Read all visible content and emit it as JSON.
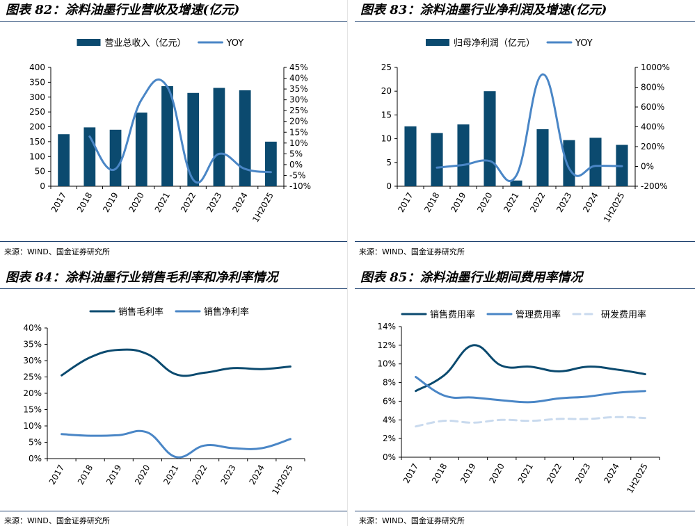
{
  "colors": {
    "bar": "#0b4a6f",
    "line_dark": "#0b4a6f",
    "line_mid": "#4a86c6",
    "line_light": "#c9daee",
    "rule": "#1c3f6e"
  },
  "charts": [
    {
      "title": "图表 82：涂料油墨行业营收及增速(亿元)",
      "source": "来源：WIND、国金证券研究所",
      "chart_data": {
        "type": "bar",
        "categories": [
          "2017",
          "2018",
          "2019",
          "2020",
          "2021",
          "2022",
          "2023",
          "2024",
          "1H2025"
        ],
        "series": [
          {
            "name": "营业总收入（亿元）",
            "kind": "bar",
            "axis": "left",
            "values": [
              175,
              198,
              190,
              248,
              337,
              314,
              331,
              323,
              150
            ]
          },
          {
            "name": "YOY",
            "kind": "line",
            "axis": "right",
            "values": [
              null,
              13,
              -2,
              30,
              36,
              -7,
              5,
              -2,
              -3.5
            ]
          }
        ],
        "ylim": [
          0,
          400
        ],
        "yticks": [
          0,
          50,
          100,
          150,
          200,
          250,
          300,
          350,
          400
        ],
        "ylim_right": [
          -10,
          45
        ],
        "yticks_right": [
          -10,
          -5,
          0,
          5,
          10,
          15,
          20,
          25,
          30,
          35,
          40,
          45
        ],
        "yticklabels_right": [
          "-10%",
          "-5%",
          "0%",
          "5%",
          "10%",
          "15%",
          "20%",
          "25%",
          "30%",
          "35%",
          "40%",
          "45%"
        ],
        "legend": "top-center"
      }
    },
    {
      "title": "图表 83：涂料油墨行业净利润及增速(亿元)",
      "source": "来源：WIND、国金证券研究所",
      "chart_data": {
        "type": "bar",
        "categories": [
          "2017",
          "2018",
          "2019",
          "2020",
          "2021",
          "2022",
          "2023",
          "2024",
          "1H2025"
        ],
        "series": [
          {
            "name": "归母净利润（亿元）",
            "kind": "bar",
            "axis": "left",
            "values": [
              12.6,
              11.2,
              13,
              20,
              1.2,
              12,
              9.7,
              10.2,
              8.7
            ]
          },
          {
            "name": "YOY",
            "kind": "line",
            "axis": "right",
            "values": [
              null,
              -12,
              15,
              55,
              -94,
              930,
              -20,
              5,
              3
            ]
          }
        ],
        "ylim": [
          0,
          25
        ],
        "yticks": [
          0,
          5,
          10,
          15,
          20,
          25
        ],
        "ylim_right": [
          -200,
          1000
        ],
        "yticks_right": [
          -200,
          0,
          200,
          400,
          600,
          800,
          1000
        ],
        "yticklabels_right": [
          "-200%",
          "0%",
          "200%",
          "400%",
          "600%",
          "800%",
          "1000%"
        ],
        "legend": "top-center"
      }
    },
    {
      "title": "图表 84：涂料油墨行业销售毛利率和净利率情况",
      "source": "来源：WIND、国金证券研究所",
      "chart_data": {
        "type": "line",
        "categories": [
          "2017",
          "2018",
          "2019",
          "2020",
          "2021",
          "2022",
          "2023",
          "2024",
          "1H2025"
        ],
        "series": [
          {
            "name": "销售毛利率",
            "kind": "line",
            "style": "dark",
            "values": [
              25.5,
              31,
              33.3,
              32,
              25.8,
              26.3,
              27.7,
              27.4,
              28.2
            ]
          },
          {
            "name": "销售净利率",
            "kind": "line",
            "style": "mid",
            "values": [
              7.5,
              7,
              7.2,
              8,
              0.5,
              4,
              3.2,
              3.2,
              6
            ]
          }
        ],
        "ylim": [
          0,
          40
        ],
        "yticks": [
          0,
          5,
          10,
          15,
          20,
          25,
          30,
          35,
          40
        ],
        "yticklabels": [
          "0%",
          "5%",
          "10%",
          "15%",
          "20%",
          "25%",
          "30%",
          "35%",
          "40%"
        ],
        "legend": "top-center"
      }
    },
    {
      "title": "图表 85：涂料油墨行业期间费用率情况",
      "source": "来源：WIND、国金证券研究所",
      "chart_data": {
        "type": "line",
        "categories": [
          "2017",
          "2018",
          "2019",
          "2020",
          "2021",
          "2022",
          "2023",
          "2024",
          "1H2025"
        ],
        "series": [
          {
            "name": "销售费用率",
            "kind": "line",
            "style": "dark",
            "values": [
              7.1,
              8.8,
              12,
              9.8,
              9.7,
              9.2,
              9.7,
              9.4,
              8.9
            ]
          },
          {
            "name": "管理费用率",
            "kind": "line",
            "style": "mid",
            "values": [
              8.6,
              6.6,
              6.4,
              6.1,
              5.9,
              6.3,
              6.5,
              6.9,
              7.1
            ]
          },
          {
            "name": "研发费用率",
            "kind": "line",
            "style": "light-dashed",
            "values": [
              3.3,
              3.9,
              3.7,
              4,
              3.9,
              4.1,
              4.1,
              4.3,
              4.2
            ]
          }
        ],
        "ylim": [
          0,
          14
        ],
        "yticks": [
          0,
          2,
          4,
          6,
          8,
          10,
          12,
          14
        ],
        "yticklabels": [
          "0%",
          "2%",
          "4%",
          "6%",
          "8%",
          "10%",
          "12%",
          "14%"
        ],
        "legend": "top-center"
      }
    }
  ]
}
